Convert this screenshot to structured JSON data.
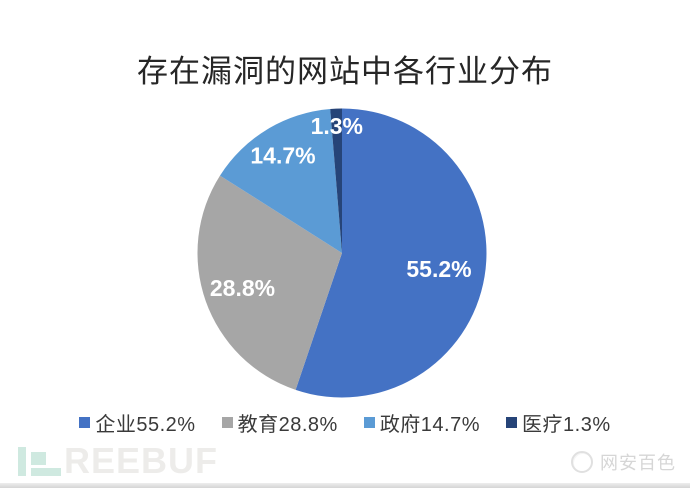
{
  "chart_data": {
    "type": "pie",
    "title": "存在漏洞的网站中各行业分布",
    "direction": "clockwise",
    "start_angle_deg": 0,
    "legend_position": "bottom",
    "data_labels": "percent-inside",
    "slices": [
      {
        "label": "企业",
        "value": 55.2,
        "display": "55.2%",
        "color": "#4472C4"
      },
      {
        "label": "教育",
        "value": 28.8,
        "display": "28.8%",
        "color": "#A6A6A6"
      },
      {
        "label": "政府",
        "value": 14.7,
        "display": "14.7%",
        "color": "#5B9BD5"
      },
      {
        "label": "医疗",
        "value": 1.3,
        "display": "1.3%",
        "color": "#264478"
      }
    ],
    "label_text_color": "#ffffff"
  },
  "watermarks": {
    "freebuf_text": "REEBUF",
    "wechat_text": "网安百色"
  }
}
